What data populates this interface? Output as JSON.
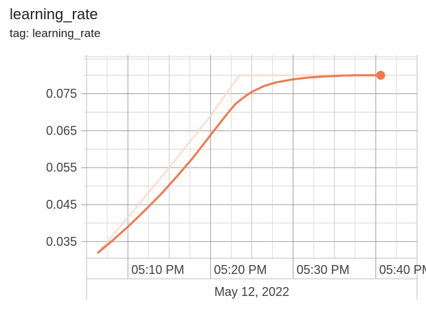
{
  "header": {
    "title": "learning_rate",
    "tag": "tag: learning_rate"
  },
  "chart_data": {
    "type": "line",
    "title": "learning_rate",
    "subtitle": "tag: learning_rate",
    "x_axis": {
      "unit": "time",
      "ticks": [
        "05:10 PM",
        "05:20 PM",
        "05:30 PM",
        "05:40 PM"
      ],
      "tick_minutes": [
        10,
        20,
        30,
        40
      ],
      "date_label": "May 12, 2022",
      "range_minutes": [
        5,
        45
      ]
    },
    "y_axis": {
      "ticks": [
        0.035,
        0.045,
        0.055,
        0.065,
        0.075
      ],
      "ylim": [
        0.0305,
        0.0855
      ]
    },
    "grid": true,
    "series": [
      {
        "role": "raw",
        "color": "#fbd9cc",
        "points": [
          {
            "t": 6.4,
            "y": 0.032
          },
          {
            "t": 10.0,
            "y": 0.0415
          },
          {
            "t": 15.0,
            "y": 0.055
          },
          {
            "t": 20.0,
            "y": 0.069
          },
          {
            "t": 23.5,
            "y": 0.08
          },
          {
            "t": 30.0,
            "y": 0.08
          },
          {
            "t": 40.0,
            "y": 0.08
          },
          {
            "t": 40.6,
            "y": 0.08
          }
        ]
      },
      {
        "role": "smoothed",
        "color": "#f0784f",
        "points": [
          {
            "t": 6.4,
            "y": 0.032
          },
          {
            "t": 8.0,
            "y": 0.035
          },
          {
            "t": 10.0,
            "y": 0.039
          },
          {
            "t": 12.0,
            "y": 0.0433
          },
          {
            "t": 14.0,
            "y": 0.0478
          },
          {
            "t": 16.0,
            "y": 0.0528
          },
          {
            "t": 18.0,
            "y": 0.058
          },
          {
            "t": 20.0,
            "y": 0.0638
          },
          {
            "t": 22.0,
            "y": 0.0695
          },
          {
            "t": 23.0,
            "y": 0.0722
          },
          {
            "t": 24.0,
            "y": 0.074
          },
          {
            "t": 25.0,
            "y": 0.0755
          },
          {
            "t": 26.5,
            "y": 0.0771
          },
          {
            "t": 28.0,
            "y": 0.0781
          },
          {
            "t": 30.0,
            "y": 0.0789
          },
          {
            "t": 32.0,
            "y": 0.0794
          },
          {
            "t": 34.0,
            "y": 0.0797
          },
          {
            "t": 36.0,
            "y": 0.0799
          },
          {
            "t": 38.0,
            "y": 0.08
          },
          {
            "t": 40.6,
            "y": 0.08
          }
        ],
        "end_marker": {
          "t": 40.6,
          "y": 0.08
        }
      }
    ]
  }
}
